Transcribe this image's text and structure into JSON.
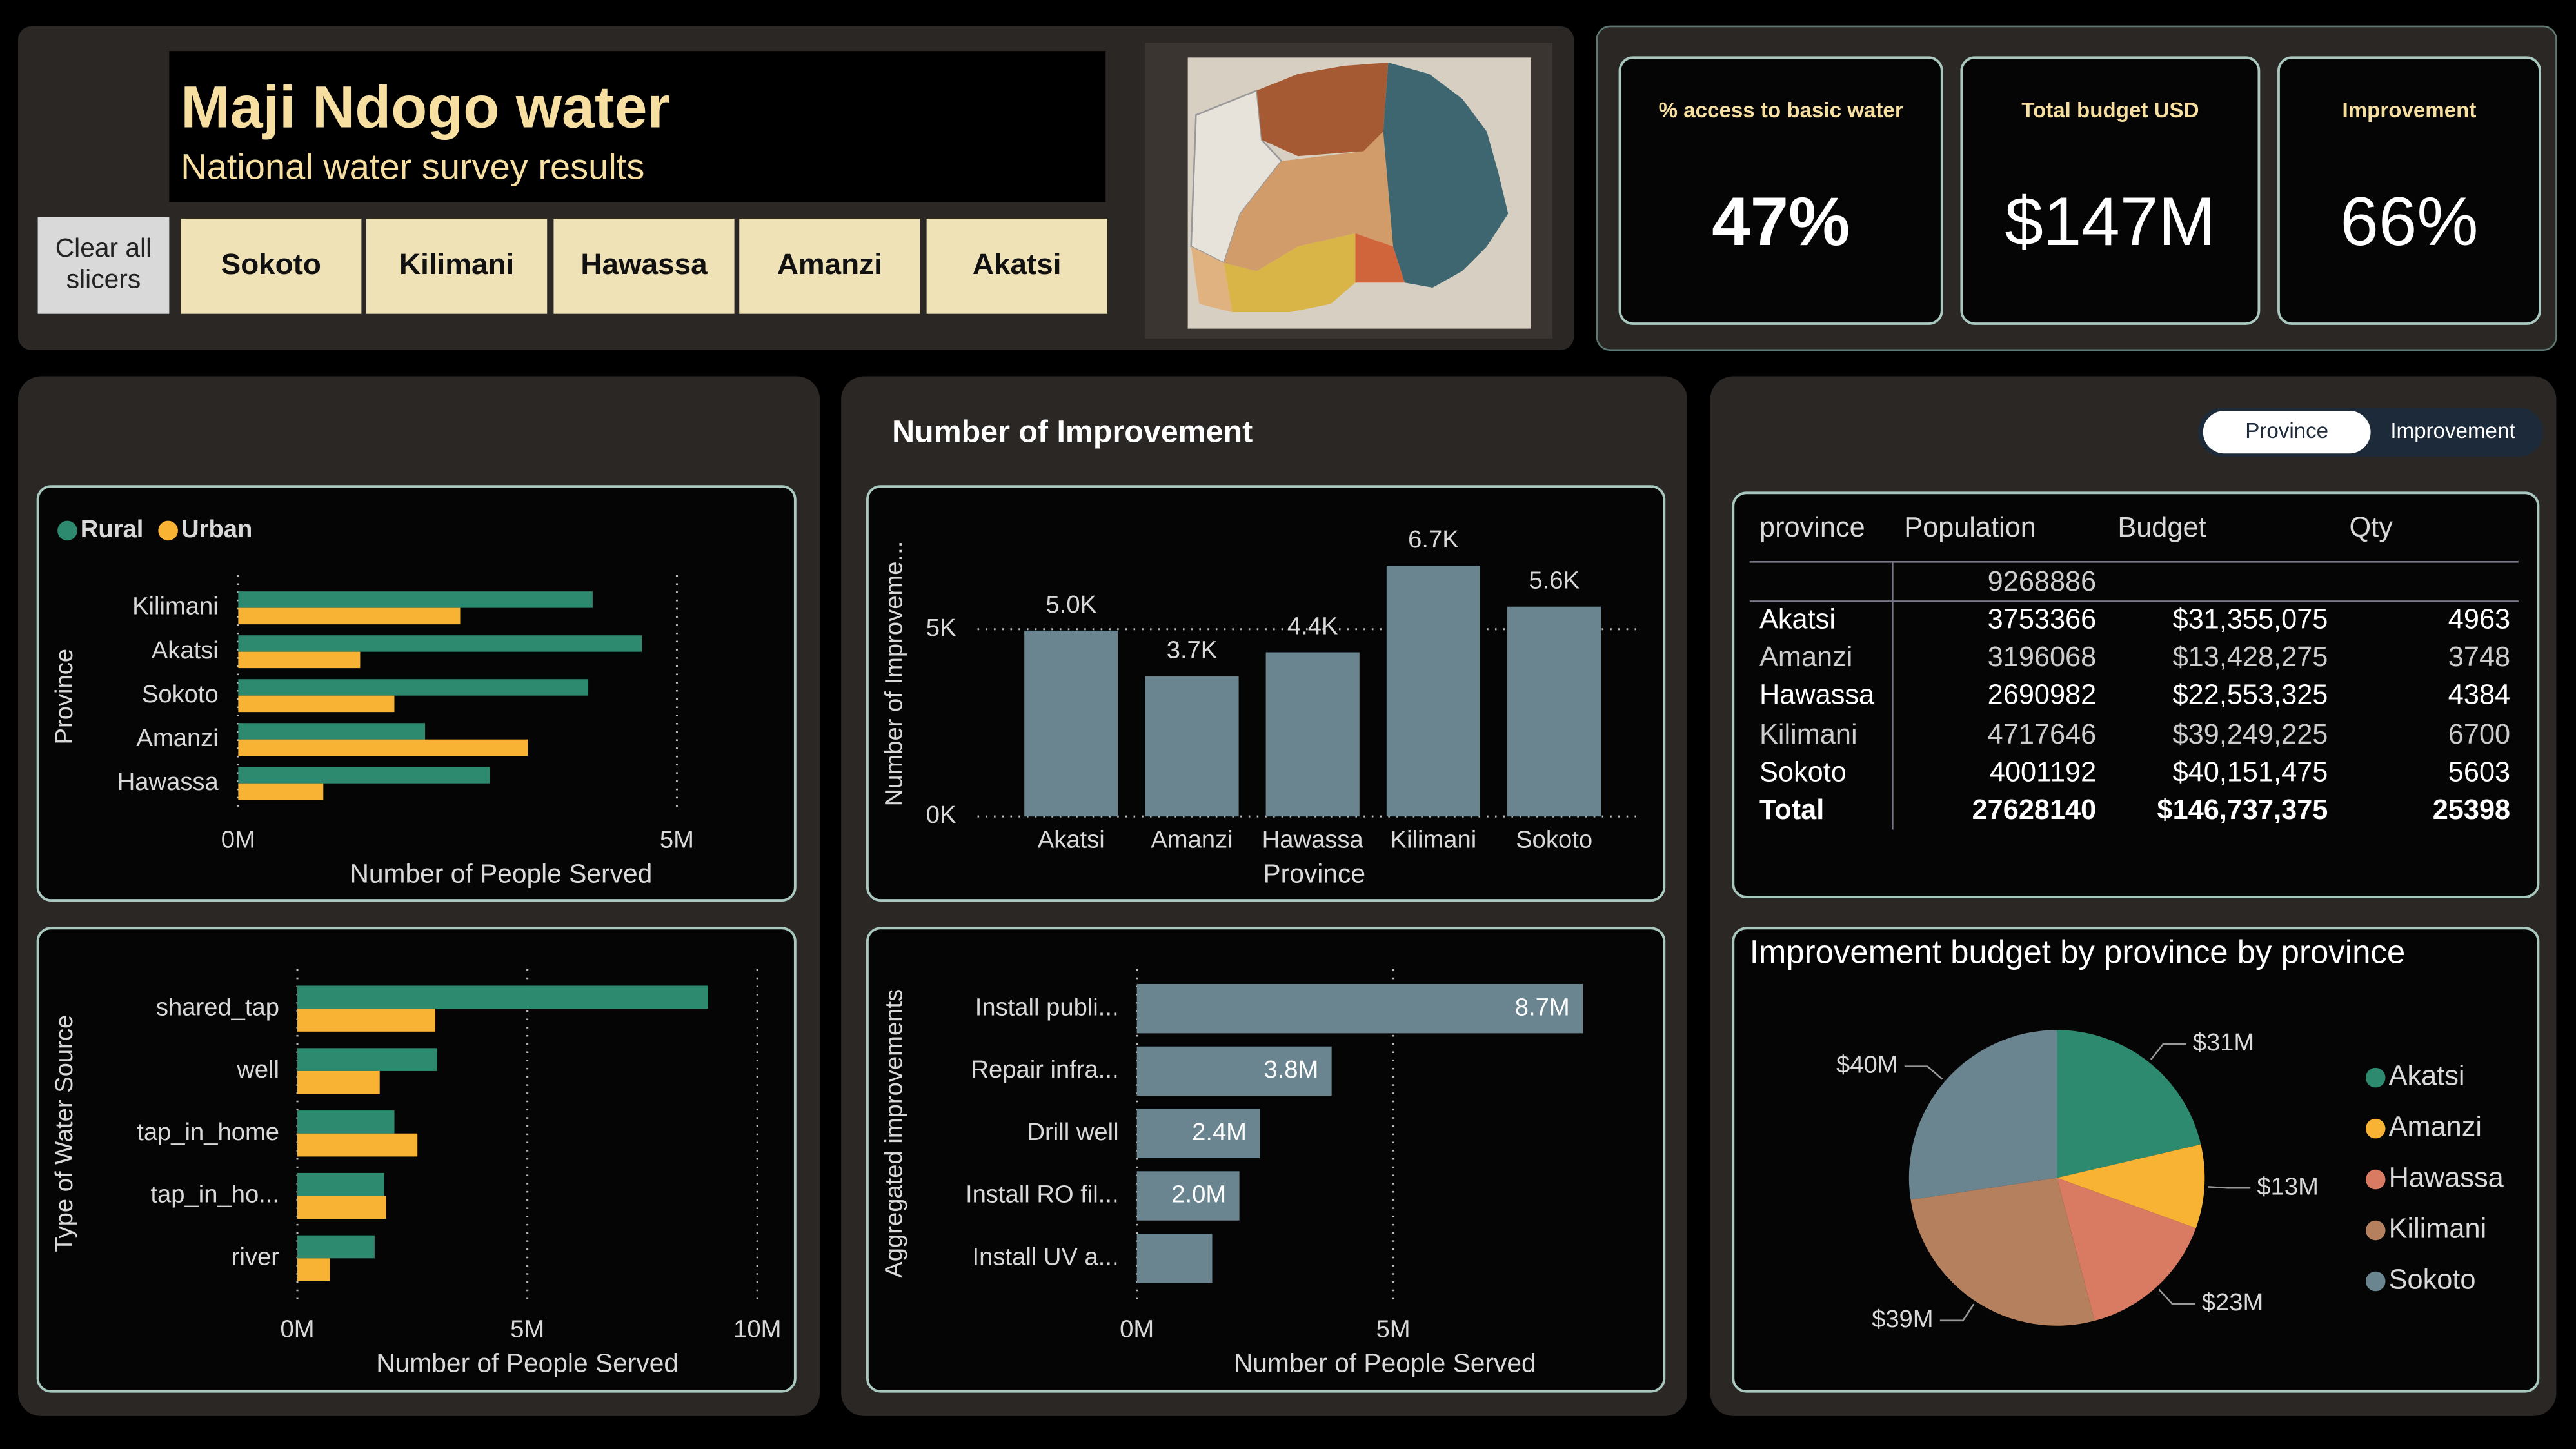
{
  "header": {
    "title": "Maji Ndogo water",
    "subtitle": "National water survey results"
  },
  "slicers": {
    "clear": [
      "Clear all",
      "slicers"
    ],
    "items": [
      "Sokoto",
      "Kilimani",
      "Hawassa",
      "Amanzi",
      "Akatsi"
    ]
  },
  "kpis": [
    {
      "label": "% access to basic water",
      "value": "47%"
    },
    {
      "label": "Total budget USD",
      "value": "$147M"
    },
    {
      "label": "Improvement",
      "value": "66%"
    }
  ],
  "toggle": [
    "Province",
    "Improvement"
  ],
  "table": {
    "header": [
      "province",
      "Population",
      "Budget",
      "Qty"
    ],
    "rows": [
      [
        null,
        9268886,
        null,
        null
      ],
      [
        "Akatsi",
        3753366,
        "$31,355,075",
        4963
      ],
      [
        "Amanzi",
        3196068,
        "$13,428,275",
        3748
      ],
      [
        "Hawassa",
        2690982,
        "$22,553,325",
        4384
      ],
      [
        "Kilimani",
        4717646,
        "$39,249,225",
        6700
      ],
      [
        "Sokoto",
        4001192,
        "$40,151,475",
        5603
      ]
    ],
    "total": [
      "Total",
      27628140,
      "$146,737,375",
      25398
    ]
  },
  "chart_data": [
    {
      "type": "bar",
      "orientation": "horizontal",
      "categories": [
        "Kilimani",
        "Akatsi",
        "Sokoto",
        "Amanzi",
        "Hawassa"
      ],
      "series": [
        {
          "name": "Rural",
          "color": "#2d8a6e",
          "values": [
            4040000,
            4600000,
            3990000,
            2130000,
            2870000
          ]
        },
        {
          "name": "Urban",
          "color": "#f8b334",
          "values": [
            2530000,
            1390000,
            1780000,
            3300000,
            970000
          ]
        }
      ],
      "xlim": [
        0,
        5000000
      ],
      "xticks": [
        {
          "value": 0,
          "label": "0M"
        },
        {
          "value": 5000000,
          "label": "5M"
        }
      ],
      "x_label": "Number of People Served",
      "y_label": "Province",
      "grid": true,
      "legend": "top-left"
    },
    {
      "type": "bar",
      "orientation": "horizontal",
      "categories": [
        "shared_tap",
        "well",
        "tap_in_home",
        "tap_in_ho...",
        "river"
      ],
      "series": [
        {
          "name": "Rural",
          "color": "#2d8a6e",
          "values": [
            8930000,
            3040000,
            2110000,
            1890000,
            1680000
          ]
        },
        {
          "name": "Urban",
          "color": "#f8b334",
          "values": [
            3000000,
            1790000,
            2610000,
            1930000,
            710000
          ]
        }
      ],
      "xlim": [
        0,
        10000000
      ],
      "xticks": [
        {
          "value": 0,
          "label": "0M"
        },
        {
          "value": 5000000,
          "label": "5M"
        },
        {
          "value": 10000000,
          "label": "10M"
        }
      ],
      "x_label": "Number of People Served",
      "y_label": "Type of Water Source",
      "grid": true
    },
    {
      "type": "bar",
      "orientation": "vertical",
      "title": "Number of Improvement",
      "categories": [
        "Akatsi",
        "Amanzi",
        "Hawassa",
        "Kilimani",
        "Sokoto"
      ],
      "values": [
        4963,
        3748,
        4384,
        6700,
        5603
      ],
      "value_labels": [
        "5.0K",
        "3.7K",
        "4.4K",
        "6.7K",
        "5.6K"
      ],
      "color": "#6b8590",
      "ylim": [
        0,
        5000
      ],
      "yticks": [
        {
          "value": 0,
          "label": "0K"
        },
        {
          "value": 5000,
          "label": "5K"
        }
      ],
      "x_label": "Province",
      "y_label": "Number of Improveme...",
      "grid": true
    },
    {
      "type": "bar",
      "orientation": "horizontal",
      "categories": [
        "Install publi...",
        "Repair infra...",
        "Drill well",
        "Install RO fil...",
        "Install UV a..."
      ],
      "values": [
        8700000,
        3800000,
        2400000,
        2000000,
        1470000
      ],
      "value_labels": [
        "8.7M",
        "3.8M",
        "2.4M",
        "2.0M",
        null
      ],
      "color": "#6b8590",
      "xlim": [
        0,
        5000000
      ],
      "xticks": [
        {
          "value": 0,
          "label": "0M"
        },
        {
          "value": 5000000,
          "label": "5M"
        }
      ],
      "x_label": "Number of People Served",
      "y_label": "Aggregated improvements",
      "grid": true
    },
    {
      "type": "pie",
      "title": "Improvement budget by province by province",
      "categories": [
        "Akatsi",
        "Amanzi",
        "Hawassa",
        "Kilimani",
        "Sokoto"
      ],
      "values": [
        31355075,
        13428275,
        22553325,
        39249225,
        40151475
      ],
      "value_labels": [
        "$31M",
        "$13M",
        "$23M",
        "$39M",
        "$40M"
      ],
      "colors": [
        "#2d8a6e",
        "#f8b334",
        "#d97a62",
        "#b5805e",
        "#6b8590"
      ],
      "legend": "right"
    }
  ]
}
